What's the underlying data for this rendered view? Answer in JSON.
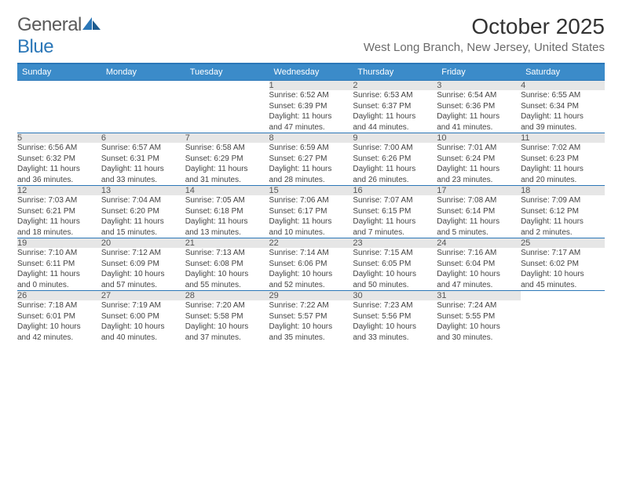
{
  "brand": {
    "part1": "General",
    "part2": "Blue"
  },
  "title": "October 2025",
  "location": "West Long Branch, New Jersey, United States",
  "colors": {
    "accent": "#3b8bc9",
    "rule": "#2b77b8",
    "daybg": "#e6e6e6",
    "text": "#333333",
    "muted": "#6b6b6b"
  },
  "dayHeaders": [
    "Sunday",
    "Monday",
    "Tuesday",
    "Wednesday",
    "Thursday",
    "Friday",
    "Saturday"
  ],
  "weeks": [
    [
      {
        "empty": true
      },
      {
        "empty": true
      },
      {
        "empty": true
      },
      {
        "num": "1",
        "sunrise": "Sunrise: 6:52 AM",
        "sunset": "Sunset: 6:39 PM",
        "day1": "Daylight: 11 hours",
        "day2": "and 47 minutes."
      },
      {
        "num": "2",
        "sunrise": "Sunrise: 6:53 AM",
        "sunset": "Sunset: 6:37 PM",
        "day1": "Daylight: 11 hours",
        "day2": "and 44 minutes."
      },
      {
        "num": "3",
        "sunrise": "Sunrise: 6:54 AM",
        "sunset": "Sunset: 6:36 PM",
        "day1": "Daylight: 11 hours",
        "day2": "and 41 minutes."
      },
      {
        "num": "4",
        "sunrise": "Sunrise: 6:55 AM",
        "sunset": "Sunset: 6:34 PM",
        "day1": "Daylight: 11 hours",
        "day2": "and 39 minutes."
      }
    ],
    [
      {
        "num": "5",
        "sunrise": "Sunrise: 6:56 AM",
        "sunset": "Sunset: 6:32 PM",
        "day1": "Daylight: 11 hours",
        "day2": "and 36 minutes."
      },
      {
        "num": "6",
        "sunrise": "Sunrise: 6:57 AM",
        "sunset": "Sunset: 6:31 PM",
        "day1": "Daylight: 11 hours",
        "day2": "and 33 minutes."
      },
      {
        "num": "7",
        "sunrise": "Sunrise: 6:58 AM",
        "sunset": "Sunset: 6:29 PM",
        "day1": "Daylight: 11 hours",
        "day2": "and 31 minutes."
      },
      {
        "num": "8",
        "sunrise": "Sunrise: 6:59 AM",
        "sunset": "Sunset: 6:27 PM",
        "day1": "Daylight: 11 hours",
        "day2": "and 28 minutes."
      },
      {
        "num": "9",
        "sunrise": "Sunrise: 7:00 AM",
        "sunset": "Sunset: 6:26 PM",
        "day1": "Daylight: 11 hours",
        "day2": "and 26 minutes."
      },
      {
        "num": "10",
        "sunrise": "Sunrise: 7:01 AM",
        "sunset": "Sunset: 6:24 PM",
        "day1": "Daylight: 11 hours",
        "day2": "and 23 minutes."
      },
      {
        "num": "11",
        "sunrise": "Sunrise: 7:02 AM",
        "sunset": "Sunset: 6:23 PM",
        "day1": "Daylight: 11 hours",
        "day2": "and 20 minutes."
      }
    ],
    [
      {
        "num": "12",
        "sunrise": "Sunrise: 7:03 AM",
        "sunset": "Sunset: 6:21 PM",
        "day1": "Daylight: 11 hours",
        "day2": "and 18 minutes."
      },
      {
        "num": "13",
        "sunrise": "Sunrise: 7:04 AM",
        "sunset": "Sunset: 6:20 PM",
        "day1": "Daylight: 11 hours",
        "day2": "and 15 minutes."
      },
      {
        "num": "14",
        "sunrise": "Sunrise: 7:05 AM",
        "sunset": "Sunset: 6:18 PM",
        "day1": "Daylight: 11 hours",
        "day2": "and 13 minutes."
      },
      {
        "num": "15",
        "sunrise": "Sunrise: 7:06 AM",
        "sunset": "Sunset: 6:17 PM",
        "day1": "Daylight: 11 hours",
        "day2": "and 10 minutes."
      },
      {
        "num": "16",
        "sunrise": "Sunrise: 7:07 AM",
        "sunset": "Sunset: 6:15 PM",
        "day1": "Daylight: 11 hours",
        "day2": "and 7 minutes."
      },
      {
        "num": "17",
        "sunrise": "Sunrise: 7:08 AM",
        "sunset": "Sunset: 6:14 PM",
        "day1": "Daylight: 11 hours",
        "day2": "and 5 minutes."
      },
      {
        "num": "18",
        "sunrise": "Sunrise: 7:09 AM",
        "sunset": "Sunset: 6:12 PM",
        "day1": "Daylight: 11 hours",
        "day2": "and 2 minutes."
      }
    ],
    [
      {
        "num": "19",
        "sunrise": "Sunrise: 7:10 AM",
        "sunset": "Sunset: 6:11 PM",
        "day1": "Daylight: 11 hours",
        "day2": "and 0 minutes."
      },
      {
        "num": "20",
        "sunrise": "Sunrise: 7:12 AM",
        "sunset": "Sunset: 6:09 PM",
        "day1": "Daylight: 10 hours",
        "day2": "and 57 minutes."
      },
      {
        "num": "21",
        "sunrise": "Sunrise: 7:13 AM",
        "sunset": "Sunset: 6:08 PM",
        "day1": "Daylight: 10 hours",
        "day2": "and 55 minutes."
      },
      {
        "num": "22",
        "sunrise": "Sunrise: 7:14 AM",
        "sunset": "Sunset: 6:06 PM",
        "day1": "Daylight: 10 hours",
        "day2": "and 52 minutes."
      },
      {
        "num": "23",
        "sunrise": "Sunrise: 7:15 AM",
        "sunset": "Sunset: 6:05 PM",
        "day1": "Daylight: 10 hours",
        "day2": "and 50 minutes."
      },
      {
        "num": "24",
        "sunrise": "Sunrise: 7:16 AM",
        "sunset": "Sunset: 6:04 PM",
        "day1": "Daylight: 10 hours",
        "day2": "and 47 minutes."
      },
      {
        "num": "25",
        "sunrise": "Sunrise: 7:17 AM",
        "sunset": "Sunset: 6:02 PM",
        "day1": "Daylight: 10 hours",
        "day2": "and 45 minutes."
      }
    ],
    [
      {
        "num": "26",
        "sunrise": "Sunrise: 7:18 AM",
        "sunset": "Sunset: 6:01 PM",
        "day1": "Daylight: 10 hours",
        "day2": "and 42 minutes."
      },
      {
        "num": "27",
        "sunrise": "Sunrise: 7:19 AM",
        "sunset": "Sunset: 6:00 PM",
        "day1": "Daylight: 10 hours",
        "day2": "and 40 minutes."
      },
      {
        "num": "28",
        "sunrise": "Sunrise: 7:20 AM",
        "sunset": "Sunset: 5:58 PM",
        "day1": "Daylight: 10 hours",
        "day2": "and 37 minutes."
      },
      {
        "num": "29",
        "sunrise": "Sunrise: 7:22 AM",
        "sunset": "Sunset: 5:57 PM",
        "day1": "Daylight: 10 hours",
        "day2": "and 35 minutes."
      },
      {
        "num": "30",
        "sunrise": "Sunrise: 7:23 AM",
        "sunset": "Sunset: 5:56 PM",
        "day1": "Daylight: 10 hours",
        "day2": "and 33 minutes."
      },
      {
        "num": "31",
        "sunrise": "Sunrise: 7:24 AM",
        "sunset": "Sunset: 5:55 PM",
        "day1": "Daylight: 10 hours",
        "day2": "and 30 minutes."
      },
      {
        "empty": true
      }
    ]
  ]
}
